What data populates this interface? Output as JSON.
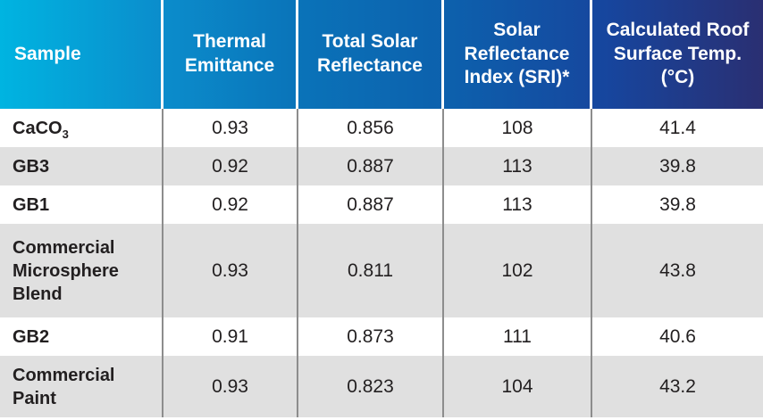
{
  "table": {
    "columns": [
      {
        "label": "Sample"
      },
      {
        "label": "Thermal Emittance"
      },
      {
        "label": "Total Solar Reflectance"
      },
      {
        "label": "Solar Reflectance Index (SRI)*"
      },
      {
        "label": "Calculated Roof Surface Temp. (°C)"
      }
    ],
    "rows": [
      {
        "sample": "CaCO",
        "sample_sub": "3",
        "thermal_emittance": "0.93",
        "total_solar_reflectance": "0.856",
        "sri": "108",
        "roof_temp_c": "41.4"
      },
      {
        "sample": "GB3",
        "sample_sub": "",
        "thermal_emittance": "0.92",
        "total_solar_reflectance": "0.887",
        "sri": "113",
        "roof_temp_c": "39.8"
      },
      {
        "sample": "GB1",
        "sample_sub": "",
        "thermal_emittance": "0.92",
        "total_solar_reflectance": "0.887",
        "sri": "113",
        "roof_temp_c": "39.8"
      },
      {
        "sample": "Commercial Microsphere Blend",
        "sample_sub": "",
        "thermal_emittance": "0.93",
        "total_solar_reflectance": "0.811",
        "sri": "102",
        "roof_temp_c": "43.8"
      },
      {
        "sample": "GB2",
        "sample_sub": "",
        "thermal_emittance": "0.91",
        "total_solar_reflectance": "0.873",
        "sri": "111",
        "roof_temp_c": "40.6"
      },
      {
        "sample": "Commercial Paint",
        "sample_sub": "",
        "thermal_emittance": "0.93",
        "total_solar_reflectance": "0.823",
        "sri": "104",
        "roof_temp_c": "43.2"
      }
    ]
  },
  "chart_data": {
    "type": "table",
    "title": "",
    "columns": [
      "Sample",
      "Thermal Emittance",
      "Total Solar Reflectance",
      "Solar Reflectance Index (SRI)*",
      "Calculated Roof Surface Temp. (°C)"
    ],
    "rows": [
      [
        "CaCO₃",
        0.93,
        0.856,
        108,
        41.4
      ],
      [
        "GB3",
        0.92,
        0.887,
        113,
        39.8
      ],
      [
        "GB1",
        0.92,
        0.887,
        113,
        39.8
      ],
      [
        "Commercial Microsphere Blend",
        0.93,
        0.811,
        102,
        43.8
      ],
      [
        "GB2",
        0.91,
        0.873,
        111,
        40.6
      ],
      [
        "Commercial Paint",
        0.93,
        0.823,
        104,
        43.2
      ]
    ]
  },
  "colors": {
    "grad_0": "#00B4E1",
    "grad_1": "#2A2F72",
    "header_text": "#FFFFFF",
    "header_divider": "#FFFFFF",
    "body_text": "#221F20",
    "stripe_row": "#E0E0E0",
    "white_row": "#FFFFFF",
    "cell_divider": "#8D8D8D"
  }
}
